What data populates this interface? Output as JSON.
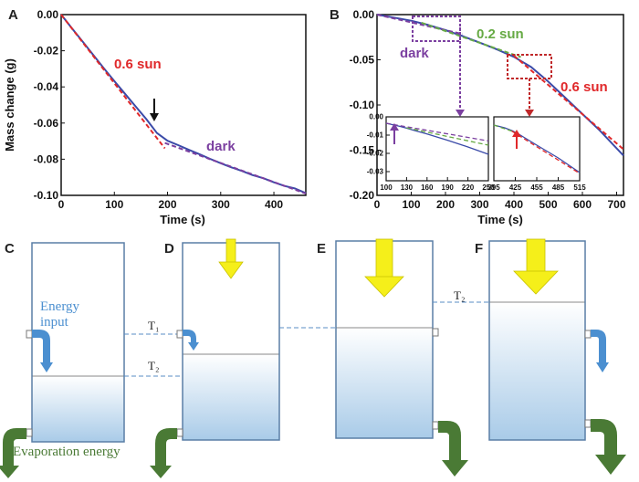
{
  "panel_labels": {
    "a": "A",
    "b": "B",
    "c": "C",
    "d": "D",
    "e": "E",
    "f": "F"
  },
  "colors": {
    "measured": "#3a4aa8",
    "fit_red": "#e0282a",
    "fit_purple": "#7b3fa0",
    "fit_green": "#66aa44",
    "water_top": "#ffffff",
    "water_bottom": "#a9cbe8",
    "sunlight": "#f5ef1a",
    "evaporation": "#4a7a35",
    "energy": "#4b8fd0"
  },
  "chart_data": [
    {
      "type": "line",
      "panel": "A",
      "xlabel": "Time (s)",
      "ylabel": "Mass change (g)",
      "xlim": [
        0,
        460
      ],
      "ylim": [
        -0.1,
        0.0
      ],
      "xticks": [
        "0",
        "100",
        "200",
        "300",
        "400"
      ],
      "yticks": [
        "0.00",
        "-0.02",
        "-0.04",
        "-0.06",
        "-0.08",
        "-0.10"
      ],
      "grid": false,
      "annotations": {
        "light_label": "0.6 sun",
        "dark_label": "dark",
        "arrow_at_time": 175
      },
      "series": [
        {
          "role": "measured",
          "x": [
            0,
            20,
            40,
            60,
            80,
            100,
            120,
            140,
            160,
            180,
            200,
            220,
            240,
            260,
            280,
            300,
            320,
            340,
            360,
            380,
            400,
            420,
            440,
            460
          ],
          "y": [
            0.0,
            -0.0075,
            -0.0148,
            -0.0222,
            -0.0296,
            -0.0368,
            -0.0438,
            -0.0508,
            -0.0578,
            -0.0655,
            -0.0698,
            -0.0722,
            -0.0748,
            -0.0772,
            -0.0798,
            -0.0822,
            -0.0845,
            -0.0865,
            -0.0888,
            -0.0905,
            -0.0928,
            -0.0948,
            -0.0962,
            -0.0988
          ]
        },
        {
          "role": "fit",
          "x": [
            0,
            195
          ],
          "y": [
            0.0,
            -0.074
          ]
        },
        {
          "role": "fit",
          "x": [
            195,
            460
          ],
          "y": [
            -0.071,
            -0.099
          ]
        }
      ]
    },
    {
      "type": "line",
      "panel": "B",
      "xlabel": "Time (s)",
      "xlim": [
        0,
        720
      ],
      "ylim": [
        -0.2,
        0.0
      ],
      "xticks": [
        "0",
        "100",
        "200",
        "300",
        "400",
        "500",
        "600",
        "700"
      ],
      "yticks": [
        "0.00",
        "-0.05",
        "-0.10",
        "-0.15",
        "-0.20"
      ],
      "grid": false,
      "annotations": {
        "dark_label": "dark",
        "green_label": "0.2 sun",
        "red_label": "0.6 sun"
      },
      "series": [
        {
          "role": "measured",
          "x": [
            0,
            50,
            100,
            150,
            200,
            250,
            300,
            350,
            400,
            450,
            500,
            550,
            600,
            650,
            700,
            720
          ],
          "y": [
            0.0,
            -0.0033,
            -0.0068,
            -0.0115,
            -0.0172,
            -0.0238,
            -0.031,
            -0.0385,
            -0.0468,
            -0.058,
            -0.074,
            -0.092,
            -0.11,
            -0.128,
            -0.148,
            -0.156
          ]
        },
        {
          "role": "fit",
          "x": [
            0,
            250
          ],
          "y": [
            0.0,
            -0.0215
          ]
        },
        {
          "role": "fit",
          "x": [
            130,
            420
          ],
          "y": [
            -0.009,
            -0.047
          ]
        },
        {
          "role": "fit",
          "x": [
            400,
            720
          ],
          "y": [
            -0.0455,
            -0.149
          ]
        }
      ]
    },
    {
      "type": "line",
      "panel": "B-inset-1",
      "xlim": [
        100,
        250
      ],
      "ylim": [
        -0.035,
        0.0
      ],
      "xticks": [
        "100",
        "130",
        "160",
        "190",
        "220",
        "250"
      ],
      "yticks": [
        "0.00",
        "-0.01",
        "-0.02",
        "-0.03"
      ],
      "series": [
        {
          "role": "measured",
          "x": [
            100,
            120,
            130,
            140,
            160,
            190,
            220,
            250
          ],
          "y": [
            -0.0035,
            -0.0052,
            -0.0062,
            -0.0073,
            -0.0094,
            -0.0128,
            -0.0165,
            -0.0205
          ]
        },
        {
          "role": "fit",
          "x": [
            100,
            250
          ],
          "y": [
            -0.0035,
            -0.0132
          ]
        },
        {
          "role": "fit",
          "x": [
            130,
            250
          ],
          "y": [
            -0.006,
            -0.0155
          ]
        }
      ]
    },
    {
      "type": "line",
      "panel": "B-inset-2",
      "xlim": [
        395,
        515
      ],
      "ylim": [
        -0.035,
        0.0
      ],
      "xticks": [
        "395",
        "425",
        "455",
        "485",
        "515"
      ],
      "series": [
        {
          "role": "measured",
          "x": [
            395,
            410,
            420,
            430,
            455,
            485,
            515
          ],
          "y": [
            -0.0045,
            -0.006,
            -0.0075,
            -0.0095,
            -0.0155,
            -0.0225,
            -0.0305
          ]
        },
        {
          "role": "fit",
          "x": [
            395,
            425
          ],
          "y": [
            -0.0045,
            -0.0085
          ]
        },
        {
          "role": "fit",
          "x": [
            420,
            515
          ],
          "y": [
            -0.0078,
            -0.031
          ]
        }
      ]
    }
  ],
  "schematic": {
    "energy_label": "Energy\ninput",
    "evaporation_label": "Evaporation energy",
    "t1_label": "T₁",
    "t2_label": "T₂",
    "t2_label_f": "T₂"
  }
}
